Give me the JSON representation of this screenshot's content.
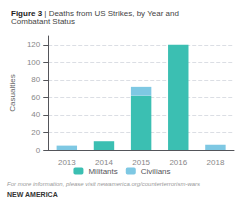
{
  "chart_data": {
    "type": "bar",
    "title": "Figure 3 | Deaths from US Strikes, by Year and Combatant Status",
    "y_label": "Casualties",
    "categories": [
      "2013",
      "2014",
      "2015",
      "2016",
      "2018"
    ],
    "series": [
      {
        "name": "Militants",
        "color": "#3bbfb2",
        "values": [
          0,
          10,
          62,
          120,
          0
        ]
      },
      {
        "name": "Civilians",
        "color": "#7ec8e3",
        "values": [
          5,
          0,
          10,
          0,
          6
        ]
      }
    ],
    "stacked": true,
    "ylim": [
      0,
      130
    ],
    "yticks": [
      0,
      20,
      40,
      60,
      80,
      100,
      120
    ],
    "grid": true,
    "legend": "bottom",
    "annotations": [
      "For more information, please visit newamerica.org/counterterrorism-wars",
      "NEW AMERICA"
    ]
  }
}
